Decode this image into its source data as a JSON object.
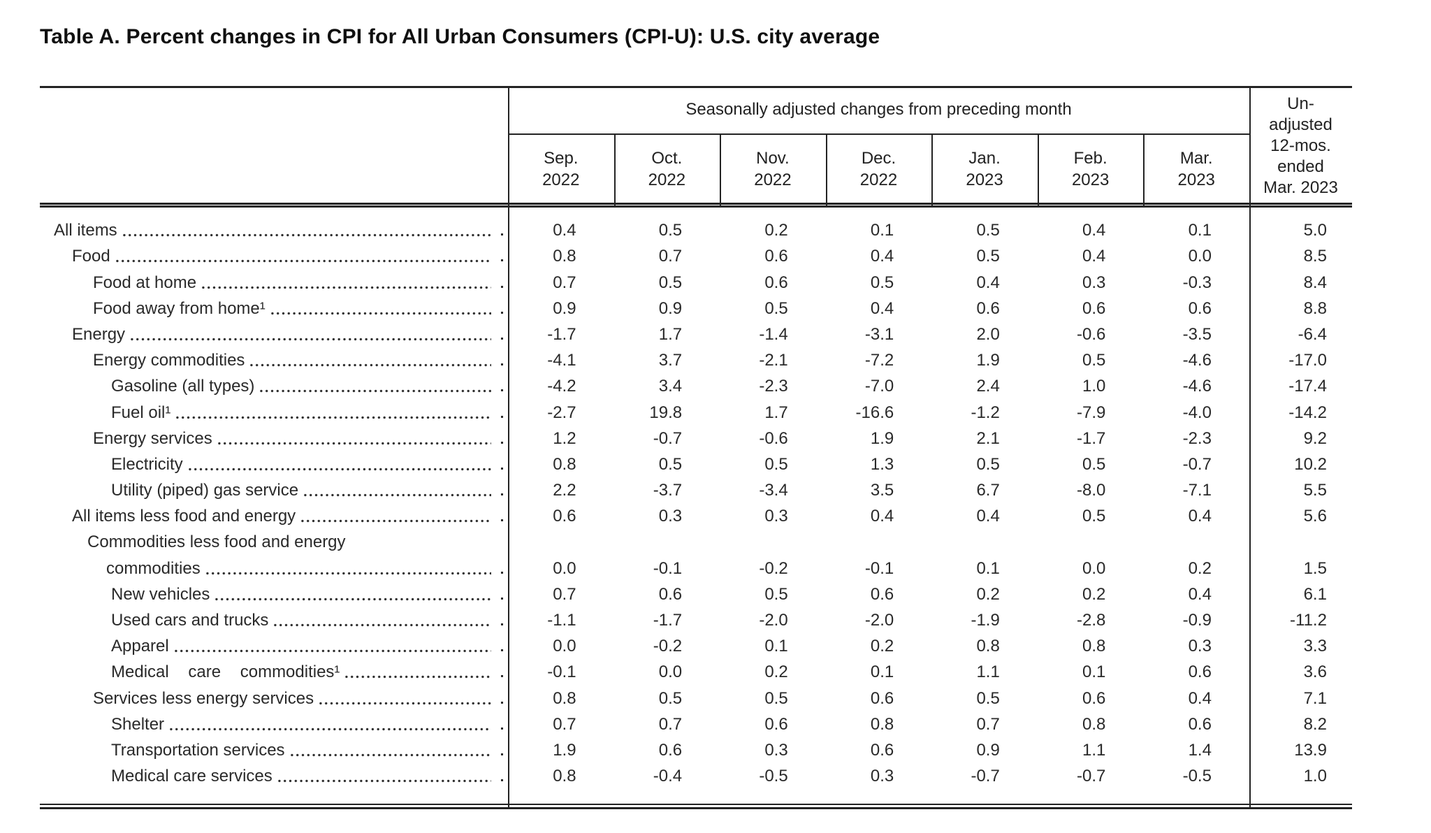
{
  "title": "Table A. Percent changes in CPI for All Urban Consumers (CPI-U): U.S. city average",
  "table": {
    "col_group_header": "Seasonally adjusted changes from preceding month",
    "columns": [
      {
        "month": "Sep.",
        "year": "2022"
      },
      {
        "month": "Oct.",
        "year": "2022"
      },
      {
        "month": "Nov.",
        "year": "2022"
      },
      {
        "month": "Dec.",
        "year": "2022"
      },
      {
        "month": "Jan.",
        "year": "2023"
      },
      {
        "month": "Feb.",
        "year": "2023"
      },
      {
        "month": "Mar.",
        "year": "2023"
      }
    ],
    "annual_header_lines": [
      "Un-",
      "adjusted",
      "12-mos.",
      "ended",
      "Mar. 2023"
    ],
    "rows": [
      {
        "label": "All items",
        "level": 0,
        "values": [
          "0.4",
          "0.5",
          "0.2",
          "0.1",
          "0.5",
          "0.4",
          "0.1"
        ],
        "annual": "5.0"
      },
      {
        "label": "Food",
        "level": 1,
        "values": [
          "0.8",
          "0.7",
          "0.6",
          "0.4",
          "0.5",
          "0.4",
          "0.0"
        ],
        "annual": "8.5"
      },
      {
        "label": "Food at home",
        "level": 2,
        "values": [
          "0.7",
          "0.5",
          "0.6",
          "0.5",
          "0.4",
          "0.3",
          "-0.3"
        ],
        "annual": "8.4"
      },
      {
        "label": "Food away from home¹",
        "level": 2,
        "values": [
          "0.9",
          "0.9",
          "0.5",
          "0.4",
          "0.6",
          "0.6",
          "0.6"
        ],
        "annual": "8.8"
      },
      {
        "label": "Energy",
        "level": 1,
        "values": [
          "-1.7",
          "1.7",
          "-1.4",
          "-3.1",
          "2.0",
          "-0.6",
          "-3.5"
        ],
        "annual": "-6.4"
      },
      {
        "label": "Energy commodities",
        "level": 2,
        "values": [
          "-4.1",
          "3.7",
          "-2.1",
          "-7.2",
          "1.9",
          "0.5",
          "-4.6"
        ],
        "annual": "-17.0"
      },
      {
        "label": "Gasoline (all types)",
        "level": 3,
        "values": [
          "-4.2",
          "3.4",
          "-2.3",
          "-7.0",
          "2.4",
          "1.0",
          "-4.6"
        ],
        "annual": "-17.4"
      },
      {
        "label": "Fuel oil¹",
        "level": 3,
        "values": [
          "-2.7",
          "19.8",
          "1.7",
          "-16.6",
          "-1.2",
          "-7.9",
          "-4.0"
        ],
        "annual": "-14.2"
      },
      {
        "label": "Energy services",
        "level": 2,
        "values": [
          "1.2",
          "-0.7",
          "-0.6",
          "1.9",
          "2.1",
          "-1.7",
          "-2.3"
        ],
        "annual": "9.2"
      },
      {
        "label": "Electricity",
        "level": 3,
        "values": [
          "0.8",
          "0.5",
          "0.5",
          "1.3",
          "0.5",
          "0.5",
          "-0.7"
        ],
        "annual": "10.2"
      },
      {
        "label": "Utility (piped) gas service",
        "level": 3,
        "values": [
          "2.2",
          "-3.7",
          "-3.4",
          "3.5",
          "6.7",
          "-8.0",
          "-7.1"
        ],
        "annual": "5.5"
      },
      {
        "label": "All items less food and energy",
        "level": 1,
        "values": [
          "0.6",
          "0.3",
          "0.3",
          "0.4",
          "0.4",
          "0.5",
          "0.4"
        ],
        "annual": "5.6"
      },
      {
        "label": "Commodities less food and energy",
        "label_line2": "commodities",
        "level": 2,
        "values": [
          "0.0",
          "-0.1",
          "-0.2",
          "-0.1",
          "0.1",
          "0.0",
          "0.2"
        ],
        "annual": "1.5"
      },
      {
        "label": "New vehicles",
        "level": 3,
        "values": [
          "0.7",
          "0.6",
          "0.5",
          "0.6",
          "0.2",
          "0.2",
          "0.4"
        ],
        "annual": "6.1"
      },
      {
        "label": "Used cars and trucks",
        "level": 3,
        "values": [
          "-1.1",
          "-1.7",
          "-2.0",
          "-2.0",
          "-1.9",
          "-2.8",
          "-0.9"
        ],
        "annual": "-11.2"
      },
      {
        "label": "Apparel",
        "level": 3,
        "values": [
          "0.0",
          "-0.2",
          "0.1",
          "0.2",
          "0.8",
          "0.8",
          "0.3"
        ],
        "annual": "3.3"
      },
      {
        "label": "Medical care commodities¹",
        "level": 3,
        "justified": true,
        "values": [
          "-0.1",
          "0.0",
          "0.2",
          "0.1",
          "1.1",
          "0.1",
          "0.6"
        ],
        "annual": "3.6"
      },
      {
        "label": "Services less energy services",
        "level": 2,
        "values": [
          "0.8",
          "0.5",
          "0.5",
          "0.6",
          "0.5",
          "0.6",
          "0.4"
        ],
        "annual": "7.1"
      },
      {
        "label": "Shelter",
        "level": 3,
        "values": [
          "0.7",
          "0.7",
          "0.6",
          "0.8",
          "0.7",
          "0.8",
          "0.6"
        ],
        "annual": "8.2"
      },
      {
        "label": "Transportation services",
        "level": 3,
        "values": [
          "1.9",
          "0.6",
          "0.3",
          "0.6",
          "0.9",
          "1.1",
          "1.4"
        ],
        "annual": "13.9"
      },
      {
        "label": "Medical care services",
        "level": 3,
        "values": [
          "0.8",
          "-0.4",
          "-0.5",
          "0.3",
          "-0.7",
          "-0.7",
          "-0.5"
        ],
        "annual": "1.0"
      }
    ]
  }
}
